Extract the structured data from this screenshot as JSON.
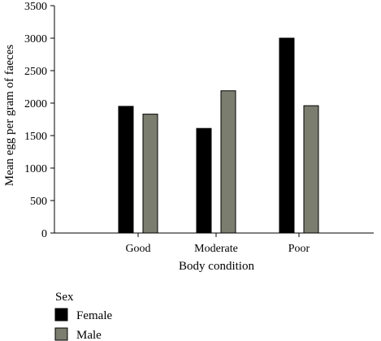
{
  "chart_data": {
    "type": "bar",
    "categories": [
      "Good",
      "Moderate",
      "Poor"
    ],
    "series": [
      {
        "name": "Female",
        "values": [
          1950,
          1610,
          3000
        ],
        "color": "#000000"
      },
      {
        "name": "Male",
        "values": [
          1830,
          2190,
          1960
        ],
        "color": "#7b7d6f"
      }
    ],
    "title": "",
    "xlabel": "Body condition",
    "ylabel": "Mean egg per gram of faeces",
    "ylim": [
      0,
      3500
    ],
    "yticks": [
      0,
      500,
      1000,
      1500,
      2000,
      2500,
      3000,
      3500
    ],
    "grid": false,
    "legend": {
      "title": "Sex",
      "placement": "bottom-left"
    }
  }
}
